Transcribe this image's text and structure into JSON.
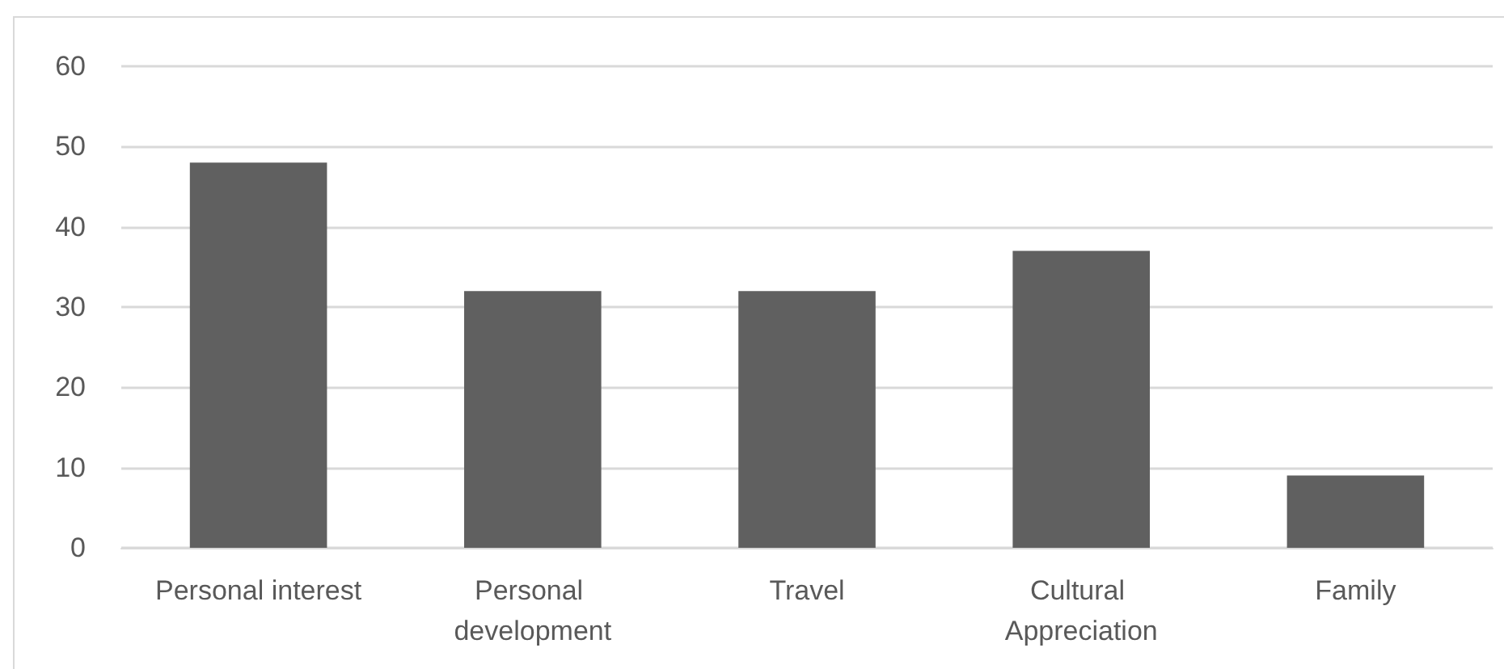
{
  "chart_data": {
    "type": "bar",
    "categories": [
      "Personal interest",
      "Personal development",
      "Travel",
      "Cultural Appreciation",
      "Family"
    ],
    "values": [
      48,
      32,
      32,
      37,
      9
    ],
    "color": "#606060",
    "ylim": [
      0,
      60
    ],
    "yticks": [
      0,
      10,
      20,
      30,
      40,
      50,
      60
    ],
    "grid": "y"
  }
}
